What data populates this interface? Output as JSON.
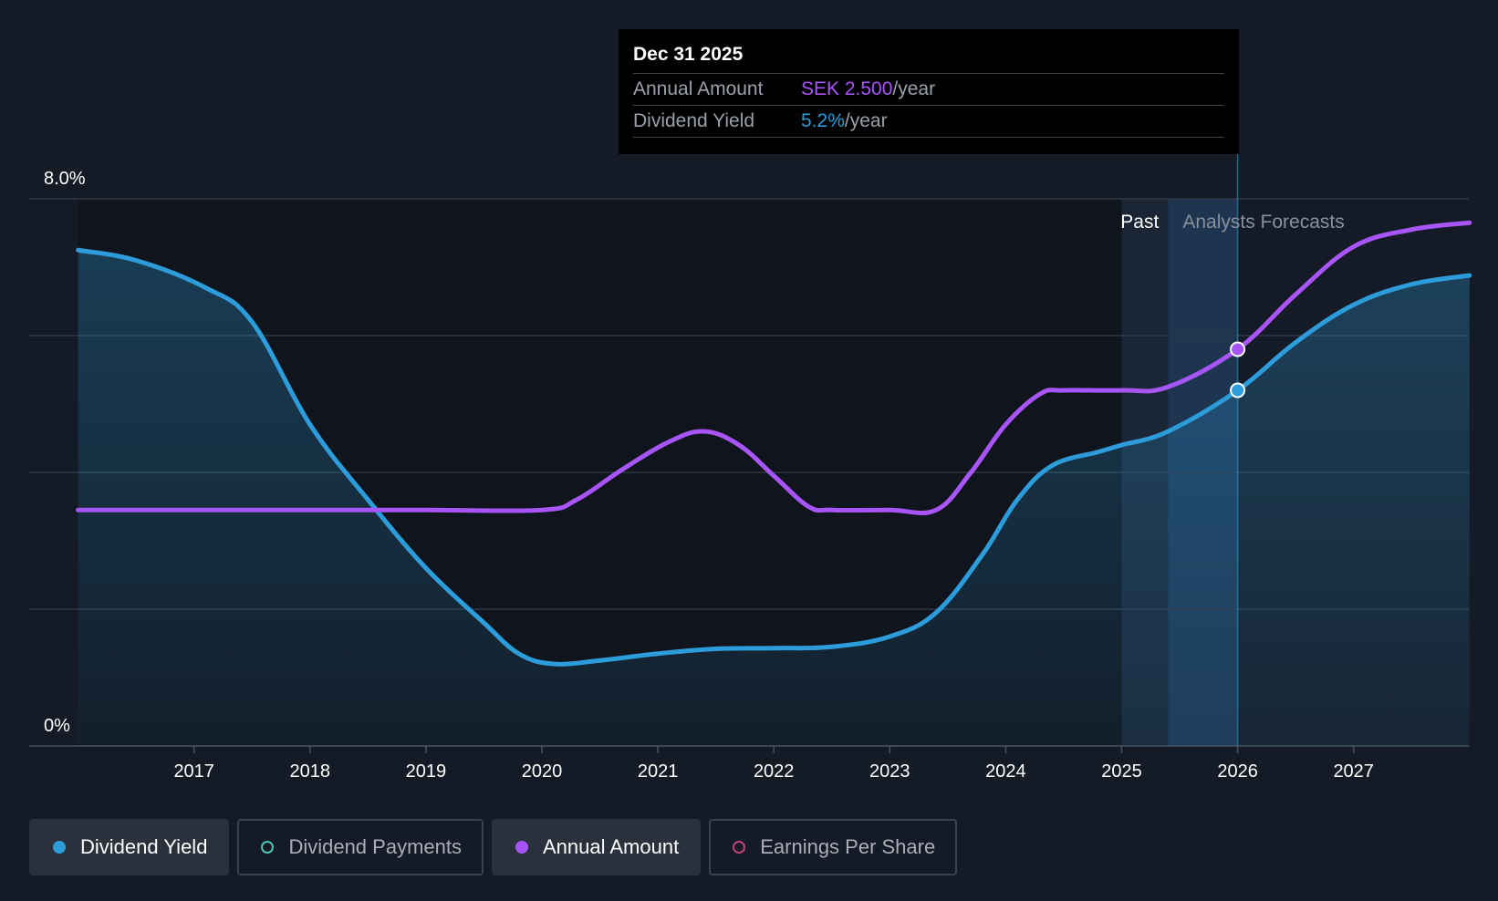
{
  "tooltip": {
    "date": "Dec 31 2025",
    "rows": [
      {
        "label": "Annual Amount",
        "value": "SEK 2.500",
        "unit": "/year",
        "color": "#a855f7"
      },
      {
        "label": "Dividend Yield",
        "value": "5.2%",
        "unit": "/year",
        "color": "#2d9cdb"
      }
    ]
  },
  "legend": [
    {
      "label": "Dividend Yield",
      "active": true,
      "color": "#2d9cdb"
    },
    {
      "label": "Dividend Payments",
      "active": false,
      "color": "#4fc3b8"
    },
    {
      "label": "Annual Amount",
      "active": true,
      "color": "#a855f7"
    },
    {
      "label": "Earnings Per Share",
      "active": false,
      "color": "#c2437a"
    }
  ],
  "chart_data": {
    "type": "line",
    "y_axis": {
      "top_label": "8.0%",
      "bottom_label": "0%",
      "ylim": [
        0,
        8
      ],
      "gridlines": [
        0,
        2,
        4,
        6,
        8
      ]
    },
    "x_ticks": [
      "2017",
      "2018",
      "2019",
      "2020",
      "2021",
      "2022",
      "2023",
      "2024",
      "2025",
      "2026",
      "2027"
    ],
    "x_tick_values": [
      2017,
      2018,
      2019,
      2020,
      2021,
      2022,
      2023,
      2024,
      2025,
      2026,
      2027
    ],
    "xlim": [
      2015.5,
      2028.0
    ],
    "regions": {
      "past_label": "Past",
      "forecast_label": "Analysts Forecasts",
      "past_band": [
        2025.0,
        2025.4
      ],
      "forecast_start": 2025.4,
      "cursor": 2026.0
    },
    "series": [
      {
        "name": "Dividend Yield",
        "color": "#2d9cdb",
        "area": true,
        "points": [
          [
            2016.0,
            7.25
          ],
          [
            2016.5,
            7.1
          ],
          [
            2017.1,
            6.7
          ],
          [
            2017.5,
            6.2
          ],
          [
            2018.0,
            4.7
          ],
          [
            2018.5,
            3.6
          ],
          [
            2019.0,
            2.6
          ],
          [
            2019.5,
            1.8
          ],
          [
            2019.8,
            1.35
          ],
          [
            2020.1,
            1.2
          ],
          [
            2020.5,
            1.25
          ],
          [
            2021.0,
            1.35
          ],
          [
            2021.5,
            1.42
          ],
          [
            2022.0,
            1.43
          ],
          [
            2022.5,
            1.45
          ],
          [
            2023.0,
            1.6
          ],
          [
            2023.4,
            1.95
          ],
          [
            2023.8,
            2.8
          ],
          [
            2024.1,
            3.6
          ],
          [
            2024.4,
            4.1
          ],
          [
            2024.8,
            4.3
          ],
          [
            2025.0,
            4.4
          ],
          [
            2025.4,
            4.6
          ],
          [
            2026.0,
            5.2
          ],
          [
            2026.5,
            5.9
          ],
          [
            2027.0,
            6.45
          ],
          [
            2027.5,
            6.75
          ],
          [
            2028.0,
            6.88
          ]
        ]
      },
      {
        "name": "Annual Amount",
        "color": "#a855f7",
        "area": false,
        "points": [
          [
            2016.0,
            3.45
          ],
          [
            2017.0,
            3.45
          ],
          [
            2018.0,
            3.45
          ],
          [
            2019.0,
            3.45
          ],
          [
            2020.0,
            3.45
          ],
          [
            2020.3,
            3.6
          ],
          [
            2020.7,
            4.05
          ],
          [
            2021.1,
            4.45
          ],
          [
            2021.4,
            4.6
          ],
          [
            2021.7,
            4.4
          ],
          [
            2022.0,
            3.95
          ],
          [
            2022.3,
            3.5
          ],
          [
            2022.5,
            3.45
          ],
          [
            2023.0,
            3.45
          ],
          [
            2023.4,
            3.45
          ],
          [
            2023.7,
            4.0
          ],
          [
            2024.0,
            4.7
          ],
          [
            2024.3,
            5.15
          ],
          [
            2024.5,
            5.2
          ],
          [
            2025.0,
            5.2
          ],
          [
            2025.4,
            5.25
          ],
          [
            2026.0,
            5.8
          ],
          [
            2026.5,
            6.6
          ],
          [
            2027.0,
            7.3
          ],
          [
            2027.5,
            7.55
          ],
          [
            2028.0,
            7.65
          ]
        ]
      }
    ],
    "markers": [
      {
        "series": "Annual Amount",
        "x": 2026.0,
        "y": 5.8
      },
      {
        "series": "Dividend Yield",
        "x": 2026.0,
        "y": 5.2
      }
    ]
  }
}
